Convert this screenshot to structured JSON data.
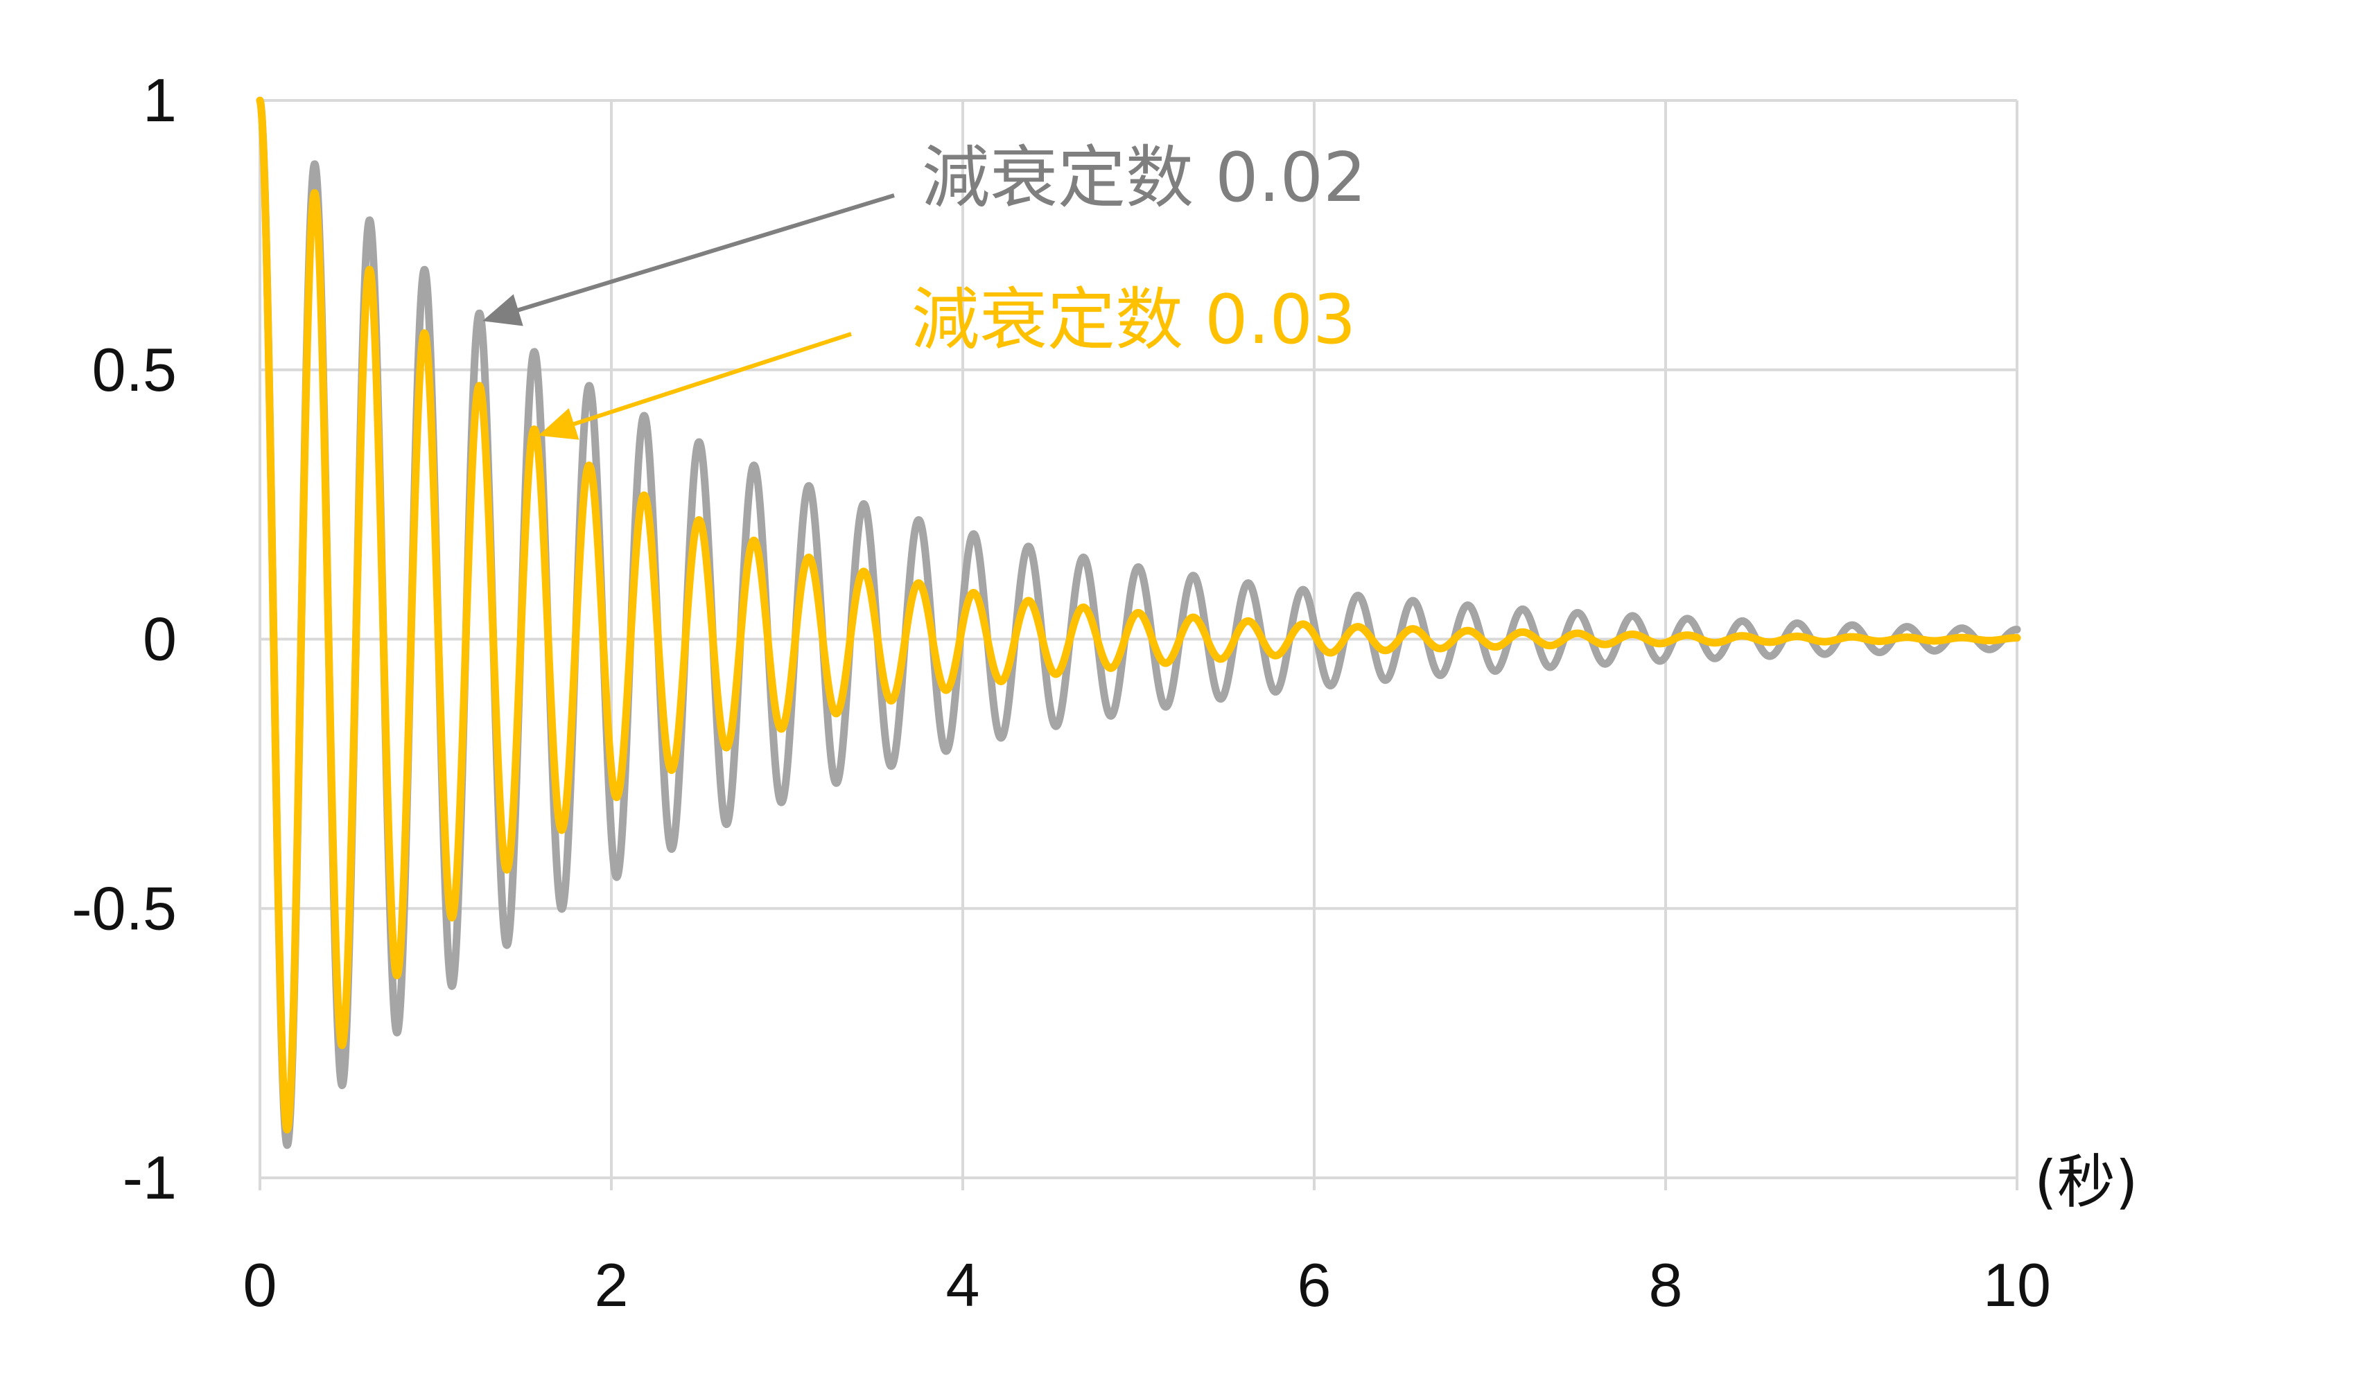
{
  "chart_data": {
    "type": "line",
    "title": "",
    "xlabel": "(秒)",
    "ylabel": "",
    "xlim": [
      0,
      10
    ],
    "ylim": [
      -1,
      1
    ],
    "xticks": [
      0,
      2,
      4,
      6,
      8,
      10
    ],
    "yticks": [
      1,
      0.5,
      0,
      -0.5,
      -1
    ],
    "xtick_labels": [
      "0",
      "2",
      "4",
      "6",
      "8",
      "10"
    ],
    "ytick_labels": [
      "1",
      "0.5",
      "0",
      "-0.5",
      "-1"
    ],
    "grid": true,
    "legend": "none",
    "series": [
      {
        "name": "減衰定数 0.02",
        "color": "#a5a5a5",
        "model": "damped cosine",
        "damping_ratio": 0.02,
        "period_s": 0.3125,
        "x_start": 0,
        "x_end": 10,
        "peaks": [
          {
            "x": 0.0,
            "y": 1.0
          },
          {
            "x": 0.31,
            "y": 0.87
          },
          {
            "x": 0.63,
            "y": 0.77
          },
          {
            "x": 0.94,
            "y": 0.68
          },
          {
            "x": 1.25,
            "y": 0.6
          },
          {
            "x": 1.56,
            "y": 0.53
          },
          {
            "x": 1.88,
            "y": 0.47
          },
          {
            "x": 2.19,
            "y": 0.41
          },
          {
            "x": 2.5,
            "y": 0.36
          }
        ]
      },
      {
        "name": "減衰定数 0.03",
        "color": "#ffc000",
        "model": "damped cosine",
        "damping_ratio": 0.03,
        "period_s": 0.3125,
        "x_start": 0,
        "x_end": 10,
        "peaks": [
          {
            "x": 0.0,
            "y": 1.0
          },
          {
            "x": 0.31,
            "y": 0.83
          },
          {
            "x": 0.63,
            "y": 0.69
          },
          {
            "x": 0.94,
            "y": 0.56
          },
          {
            "x": 1.25,
            "y": 0.46
          },
          {
            "x": 1.56,
            "y": 0.38
          },
          {
            "x": 1.88,
            "y": 0.32
          },
          {
            "x": 2.19,
            "y": 0.26
          },
          {
            "x": 2.5,
            "y": 0.21
          }
        ]
      }
    ],
    "annotations": [
      {
        "text": "減衰定数 0.02",
        "color": "#7f7f7f",
        "points_to": {
          "x": 1.25,
          "y": 0.58
        }
      },
      {
        "text": "減衰定数 0.03",
        "color": "#ffc000",
        "points_to": {
          "x": 1.56,
          "y": 0.37
        }
      }
    ]
  }
}
